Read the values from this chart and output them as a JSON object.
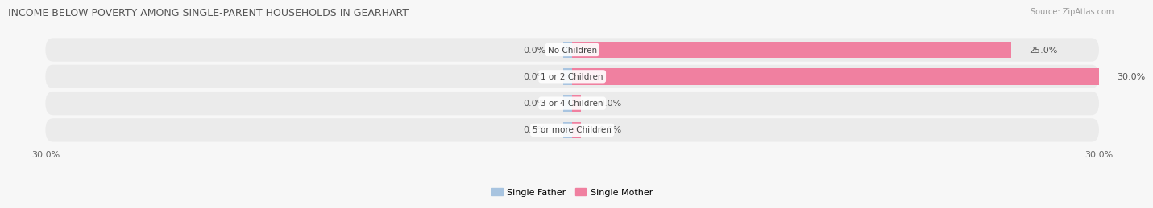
{
  "title": "INCOME BELOW POVERTY AMONG SINGLE-PARENT HOUSEHOLDS IN GEARHART",
  "source_text": "Source: ZipAtlas.com",
  "categories": [
    "No Children",
    "1 or 2 Children",
    "3 or 4 Children",
    "5 or more Children"
  ],
  "single_father": [
    0.0,
    0.0,
    0.0,
    0.0
  ],
  "single_mother": [
    25.0,
    30.0,
    0.0,
    0.0
  ],
  "xlim": [
    -30.0,
    30.0
  ],
  "x_left_label": "30.0%",
  "x_right_label": "30.0%",
  "father_color": "#a8c4e0",
  "mother_color": "#f080a0",
  "bar_height": 0.62,
  "row_bg_color": "#ebebeb",
  "fig_bg_color": "#f7f7f7",
  "title_fontsize": 9,
  "label_fontsize": 8,
  "category_fontsize": 7.5,
  "source_fontsize": 7,
  "legend_fontsize": 8
}
